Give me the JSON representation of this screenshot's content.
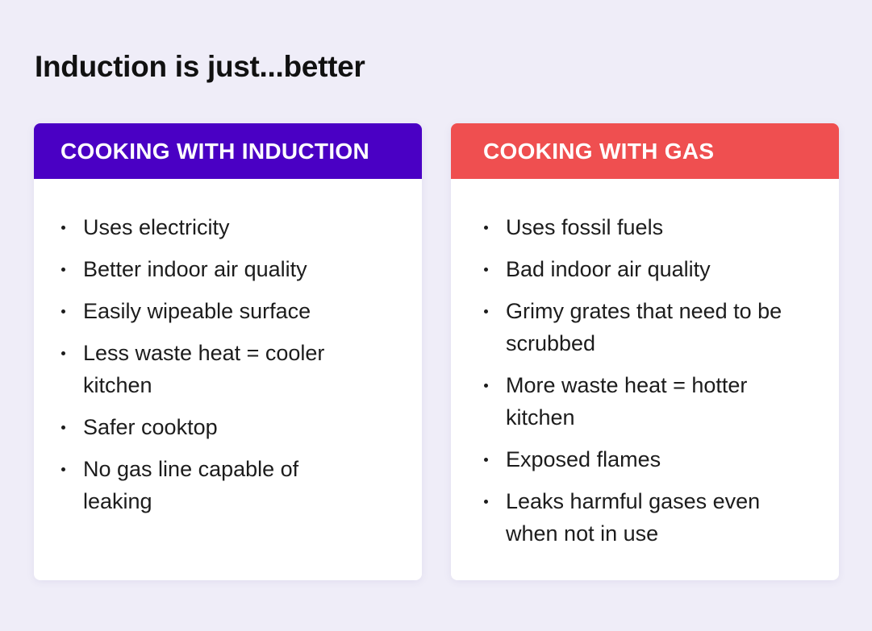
{
  "title": "Induction is just...better",
  "colors": {
    "background": "#efedf8",
    "induction_accent": "#4a00c4",
    "gas_accent": "#ef4f50"
  },
  "induction": {
    "heading": "COOKING WITH INDUCTION",
    "items": [
      "Uses electricity",
      "Better indoor air quality",
      "Easily wipeable surface",
      "Less waste heat = cooler kitchen",
      "Safer cooktop",
      "No gas line capable of leaking"
    ]
  },
  "gas": {
    "heading": "COOKING WITH GAS",
    "items": [
      "Uses fossil fuels",
      "Bad indoor air quality",
      "Grimy grates that need to be scrubbed",
      "More waste heat = hotter kitchen",
      "Exposed flames",
      "Leaks harmful gases even when not in use"
    ]
  }
}
